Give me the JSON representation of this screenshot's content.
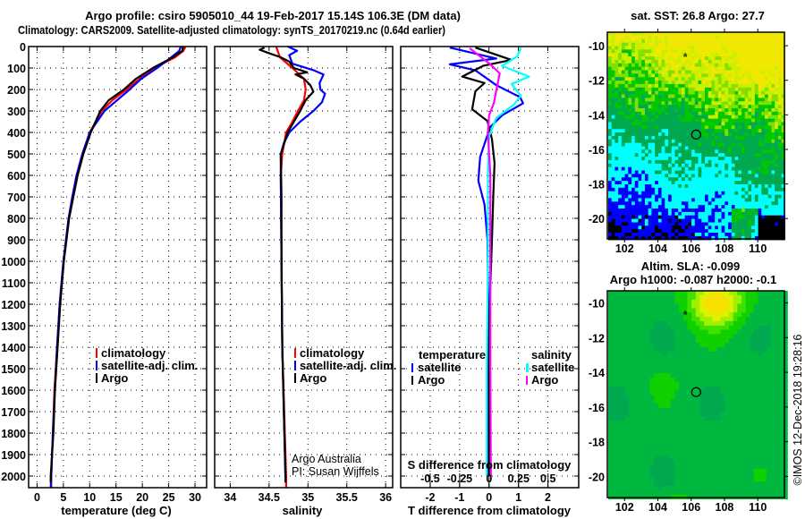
{
  "title_line1": "Argo profile: csiro 5905010_44 19-Feb-2017 15.14S 106.3E (DM data)",
  "title_line2": "Climatology: CARS2009. Satellite-adjusted climatology: synTS_20170219.nc (0.64d earlier)",
  "credit_line1": "Argo Australia",
  "credit_line2": "PI: Susan Wijffels",
  "copyright": "©IMOS 12-Dec-2018 19:28:16",
  "colors": {
    "climatology": "#ff0000",
    "satellite": "#0000ff",
    "argo": "#000000",
    "sal_satellite": "#00ffff",
    "sal_argo": "#ff00ff"
  },
  "chart_data": [
    {
      "type": "line",
      "id": "temperature",
      "xlabel": "temperature (deg C)",
      "ylabel": "",
      "xlim": [
        -1.6,
        32.2
      ],
      "ylim": [
        2054,
        0
      ],
      "xticks": [
        "0",
        "5",
        "10",
        "15",
        "20",
        "25",
        "30"
      ],
      "yticks": [
        "0",
        "100",
        "200",
        "300",
        "400",
        "500",
        "600",
        "700",
        "800",
        "900",
        "1000",
        "1100",
        "1200",
        "1300",
        "1400",
        "1500",
        "1600",
        "1700",
        "1800",
        "1900",
        "2000"
      ],
      "grid": true,
      "legend": [
        "climatology",
        "satellite-adj. clim.",
        "Argo"
      ],
      "series": [
        {
          "name": "climatology",
          "color": "#ff0000",
          "depth": [
            0,
            20,
            50,
            100,
            150,
            200,
            250,
            300,
            400,
            500,
            600,
            700,
            800,
            1000,
            1200,
            1400,
            1600,
            1800,
            2000,
            2054
          ],
          "values": [
            28.2,
            27.8,
            26.2,
            22.2,
            19.5,
            17,
            14.3,
            12.3,
            10,
            8.6,
            7.5,
            6.7,
            6.0,
            5.0,
            4.3,
            3.8,
            3.3,
            3.0,
            2.7,
            2.7
          ]
        },
        {
          "name": "satellite-adj. clim.",
          "color": "#0000ff",
          "depth": [
            0,
            20,
            60,
            100,
            150,
            200,
            250,
            300,
            400,
            500,
            600,
            700,
            800,
            1000,
            1200,
            1400,
            1600,
            1800,
            2000,
            2054
          ],
          "values": [
            27.3,
            27.0,
            25.0,
            22.8,
            19.8,
            17.6,
            15.2,
            12.8,
            10,
            8.6,
            7.5,
            6.7,
            6.0,
            5.0,
            4.3,
            3.8,
            3.4,
            3.0,
            2.7,
            2.6
          ]
        },
        {
          "name": "Argo",
          "color": "#000000",
          "depth": [
            0,
            20,
            50,
            100,
            150,
            200,
            250,
            300,
            400,
            500,
            600,
            700,
            800,
            1000,
            1200,
            1400,
            1600,
            1800,
            2000,
            2030
          ],
          "values": [
            27.7,
            27.6,
            25.8,
            22.0,
            18.8,
            16.5,
            13.6,
            12.0,
            10.2,
            8.8,
            7.7,
            6.9,
            6.1,
            5.1,
            4.4,
            3.9,
            3.4,
            3.1,
            2.6,
            2.6
          ]
        }
      ]
    },
    {
      "type": "line",
      "id": "salinity",
      "xlabel": "salinity",
      "xlim": [
        33.8,
        36.09
      ],
      "ylim": [
        2054,
        0
      ],
      "xticks": [
        "34",
        "34.5",
        "35",
        "35.5",
        "36"
      ],
      "grid": true,
      "legend": [
        "climatology",
        "satellite-adj. clim.",
        "Argo"
      ],
      "series": [
        {
          "name": "climatology",
          "color": "#ff0000",
          "depth": [
            0,
            50,
            100,
            150,
            200,
            250,
            300,
            350,
            400,
            500,
            600,
            1000,
            1400,
            2000,
            2054
          ],
          "values": [
            34.59,
            34.64,
            34.8,
            34.95,
            34.97,
            34.95,
            34.87,
            34.8,
            34.72,
            34.67,
            34.65,
            34.66,
            34.67,
            34.72,
            34.72
          ]
        },
        {
          "name": "satellite-adj. clim.",
          "color": "#0000ff",
          "depth": [
            0,
            20,
            40,
            80,
            110,
            130,
            170,
            200,
            220,
            260,
            300,
            350,
            400,
            450,
            500,
            600,
            1000,
            1400,
            2000
          ],
          "values": [
            34.74,
            34.86,
            34.76,
            34.8,
            35.07,
            35.2,
            35.15,
            35.16,
            35.22,
            35.18,
            35.07,
            34.9,
            34.76,
            34.69,
            34.65,
            34.65,
            34.66,
            34.67,
            34.71
          ]
        },
        {
          "name": "Argo",
          "color": "#000000",
          "depth": [
            5,
            15,
            30,
            50,
            70,
            100,
            120,
            130,
            150,
            180,
            210,
            250,
            300,
            350,
            400,
            500,
            700,
            1000,
            1400,
            2000,
            2030
          ],
          "values": [
            34.44,
            34.38,
            34.49,
            34.65,
            34.76,
            34.82,
            34.99,
            34.84,
            34.95,
            35.03,
            35.07,
            34.97,
            34.9,
            34.82,
            34.74,
            34.65,
            34.66,
            34.66,
            34.67,
            34.71,
            34.71
          ]
        }
      ]
    },
    {
      "type": "line",
      "id": "difference",
      "xlabel": "T difference from climatology",
      "xlabel2": "S difference from climatology",
      "xlim": [
        -3.0,
        3.05
      ],
      "xlim_salinity": [
        -0.75,
        0.76
      ],
      "ylim": [
        2054,
        0
      ],
      "xticks": [
        "-2",
        "-1",
        "0",
        "1",
        "2"
      ],
      "xticks_salinity": [
        "-0.5",
        "-0.25",
        "0",
        "0.25",
        "0.5"
      ],
      "grid": true,
      "legend_temperature_title": "temperature",
      "legend_salinity_title": "salinity",
      "legend": [
        "satellite",
        "Argo",
        "satellite",
        "Argo"
      ],
      "series": [
        {
          "name": "temperature satellite",
          "kind": "T",
          "color": "#0000ff",
          "depth": [
            5,
            56,
            83,
            111,
            180,
            236,
            264,
            319,
            375,
            514,
            625,
            736,
            900,
            1200,
            2000
          ],
          "values": [
            -1.33,
            0.25,
            -1.33,
            -0.46,
            0.25,
            1.06,
            1.16,
            0.46,
            0.04,
            -0.3,
            -0.36,
            -0.15,
            -0.05,
            -0.02,
            -0.03
          ]
        },
        {
          "name": "temperature Argo",
          "kind": "T",
          "color": "#000000",
          "depth": [
            5,
            62,
            90,
            140,
            170,
            208,
            292,
            347,
            431,
            542,
            681,
            900,
            1100,
            1300,
            2000
          ],
          "values": [
            -0.46,
            0.76,
            -0.2,
            -0.91,
            -0.15,
            -0.46,
            -0.57,
            -0.05,
            0.1,
            0.19,
            0.15,
            0.1,
            0.05,
            0.0,
            0.0
          ]
        },
        {
          "name": "salinity satellite",
          "kind": "S",
          "color": "#00ffff",
          "depth": [
            5,
            45,
            90,
            140,
            174,
            229,
            271,
            333,
            417,
            600,
            1000,
            1500,
            2000
          ],
          "values": [
            0.27,
            0.24,
            0.11,
            0.34,
            0.19,
            0.27,
            0.21,
            0.06,
            0.0,
            -0.01,
            -0.01,
            -0.02,
            -0.02
          ]
        },
        {
          "name": "salinity Argo",
          "kind": "S",
          "color": "#ff00ff",
          "depth": [
            8,
            83,
            125,
            208,
            264,
            320,
            403,
            600,
            1000,
            1500,
            2000
          ],
          "values": [
            -0.165,
            0.01,
            0.09,
            0.06,
            0.04,
            0.0,
            -0.01,
            0.01,
            0.01,
            0.01,
            0.015
          ]
        }
      ]
    },
    {
      "type": "heatmap",
      "id": "sst_map",
      "title": "sat. SST: 26.8 Argo: 27.7",
      "xlim": [
        101.02,
        111.6
      ],
      "ylim": [
        -21.18,
        -9.22
      ],
      "xticks": [
        "102",
        "104",
        "106",
        "108",
        "110"
      ],
      "yticks": [
        "-10",
        "-12",
        "-14",
        "-16",
        "-18",
        "-20"
      ],
      "argo_position": {
        "lon": 106.3,
        "lat": -15.14
      },
      "palette": [
        "#000000",
        "#0000ff",
        "#00ffff",
        "#00a850",
        "#00c800",
        "#80e000",
        "#c8f000",
        "#f0e800"
      ]
    },
    {
      "type": "heatmap",
      "id": "sla_map",
      "title": "Altim. SLA: -0.099",
      "subtitle": "Argo h1000: -0.087 h2000: -0.1",
      "xlim": [
        101.02,
        111.6
      ],
      "ylim": [
        -21.22,
        -9.3
      ],
      "xticks": [
        "102",
        "104",
        "106",
        "108",
        "110"
      ],
      "yticks": [
        "-10",
        "-12",
        "-14",
        "-16",
        "-18",
        "-20"
      ],
      "argo_position": {
        "lon": 106.3,
        "lat": -15.14
      },
      "palette": [
        "#00a850",
        "#00b840",
        "#10d000",
        "#40e000",
        "#a0f000",
        "#e0f000",
        "#f8e000"
      ]
    }
  ]
}
